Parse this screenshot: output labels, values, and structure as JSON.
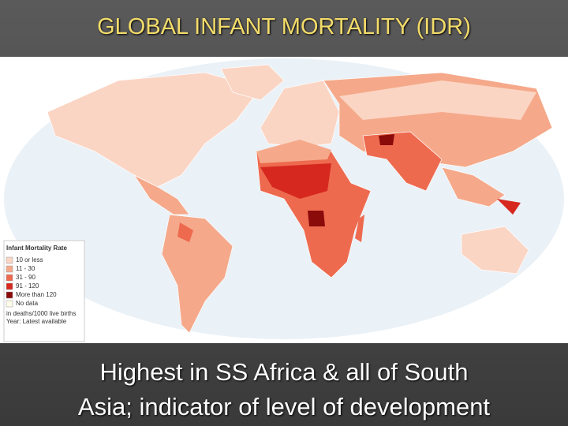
{
  "header": {
    "title": "GLOBAL INFANT MORTALITY (IDR)"
  },
  "map": {
    "legend": {
      "title": "Infant Mortality Rate",
      "items": [
        {
          "label": "10 or less"
        },
        {
          "label": "11 - 30"
        },
        {
          "label": "31 - 90"
        },
        {
          "label": "91 - 120"
        },
        {
          "label": "More than 120"
        },
        {
          "label": "No data"
        }
      ],
      "notes": [
        "in deaths/1000 live births",
        "Year: Latest available"
      ]
    }
  },
  "caption": {
    "lines": [
      "Highest in SS Africa & all of South",
      "Asia; indicator of level of development"
    ]
  }
}
